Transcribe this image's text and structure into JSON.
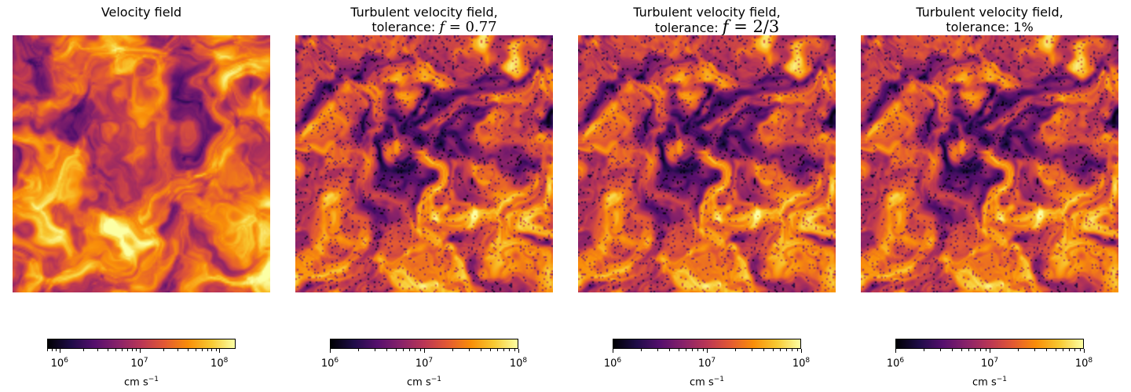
{
  "colormap": "inferno",
  "colormap_stops": [
    "#000004",
    "#1f0c48",
    "#550f6d",
    "#88226a",
    "#ba3655",
    "#e35933",
    "#f98e09",
    "#f8c932",
    "#fcffa4"
  ],
  "chart_data": [
    {
      "type": "heatmap",
      "title_line1": "Velocity field",
      "title_line2": "",
      "colorbar": {
        "scale": "log",
        "range": [
          700000,
          160000000
        ],
        "ticks": [
          {
            "base": "10",
            "exp": "6",
            "value": 1000000
          },
          {
            "base": "10",
            "exp": "7",
            "value": 10000000
          },
          {
            "base": "10",
            "exp": "8",
            "value": 100000000
          }
        ],
        "label": "cm s",
        "label_exp": "−1"
      },
      "field": {
        "mean_level": 0.7,
        "seed": 11
      }
    },
    {
      "type": "heatmap",
      "title_line1": "Turbulent velocity field,",
      "title_line2": "tolerance: ",
      "title_math_var": "f",
      "title_math_rest": " = 0.77",
      "colorbar": {
        "scale": "log",
        "range": [
          1000000,
          100000000
        ],
        "ticks": [
          {
            "base": "10",
            "exp": "6",
            "value": 1000000
          },
          {
            "base": "10",
            "exp": "7",
            "value": 10000000
          },
          {
            "base": "10",
            "exp": "8",
            "value": 100000000
          }
        ],
        "label": "cm s",
        "label_exp": "−1"
      },
      "field": {
        "mean_level": 0.55,
        "seed": 23
      }
    },
    {
      "type": "heatmap",
      "title_line1": "Turbulent velocity field,",
      "title_line2": "tolerance: ",
      "title_math_var": "f",
      "title_math_rest": " = 2/3",
      "colorbar": {
        "scale": "log",
        "range": [
          1000000,
          100000000
        ],
        "ticks": [
          {
            "base": "10",
            "exp": "6",
            "value": 1000000
          },
          {
            "base": "10",
            "exp": "7",
            "value": 10000000
          },
          {
            "base": "10",
            "exp": "8",
            "value": 100000000
          }
        ],
        "label": "cm s",
        "label_exp": "−1"
      },
      "field": {
        "mean_level": 0.55,
        "seed": 23
      }
    },
    {
      "type": "heatmap",
      "title_line1": "Turbulent velocity field,",
      "title_line2": "tolerance: 1%",
      "colorbar": {
        "scale": "log",
        "range": [
          1000000,
          100000000
        ],
        "ticks": [
          {
            "base": "10",
            "exp": "6",
            "value": 1000000
          },
          {
            "base": "10",
            "exp": "7",
            "value": 10000000
          },
          {
            "base": "10",
            "exp": "8",
            "value": 100000000
          }
        ],
        "label": "cm s",
        "label_exp": "−1"
      },
      "field": {
        "mean_level": 0.55,
        "seed": 23
      }
    }
  ]
}
